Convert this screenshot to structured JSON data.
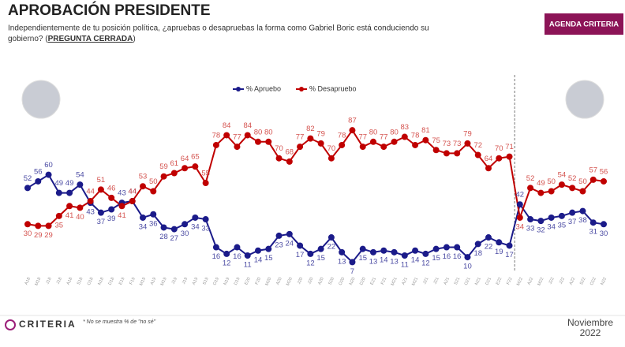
{
  "header": {
    "title": "APROBACIÓN PRESIDENTE",
    "subtitle": [
      "Independientemente de tu posición política, ¿apruebas o desapruebas la forma como Gabriel Boric está conduciendo su",
      "gobierno? ("
    ],
    "subtitle_tag": "PREGUNTA CERRADA",
    "subtitle_end": ")",
    "brand": "AGENDA CRITERIA"
  },
  "chart_data": {
    "type": "line",
    "categories": [
      "A18",
      "M18",
      "J18",
      "J18",
      "A18",
      "S18",
      "O18",
      "N18",
      "D18",
      "E19",
      "F19",
      "M19",
      "A19",
      "M19",
      "J19",
      "J19",
      "A19",
      "S19",
      "O19",
      "N19",
      "D19",
      "E20",
      "F20",
      "M20",
      "A20",
      "M20",
      "J20",
      "J20",
      "A20",
      "S20",
      "O20",
      "N20",
      "D20",
      "E21",
      "F21",
      "M21",
      "A21",
      "M21",
      "J21",
      "J21",
      "A21",
      "S21",
      "O21",
      "N21",
      "D21",
      "E22",
      "F22",
      "M22",
      "A22",
      "M22",
      "J22",
      "J22",
      "A22",
      "S22",
      "O22",
      "N22"
    ],
    "ylim": [
      0,
      100
    ],
    "series": [
      {
        "name": "% Apruebo",
        "color": "#1b1b8a",
        "label_color": "#4b4ba3",
        "values": [
          52,
          56,
          60,
          49,
          49,
          54,
          43,
          37,
          39,
          43,
          44,
          34,
          36,
          28,
          27,
          30,
          34,
          33,
          16,
          12,
          16,
          11,
          14,
          15,
          23,
          24,
          17,
          12,
          15,
          22,
          13,
          7,
          15,
          13,
          14,
          13,
          11,
          14,
          12,
          15,
          16,
          16,
          10,
          18,
          22,
          19,
          17,
          42,
          33,
          32,
          34,
          35,
          37,
          38,
          31,
          30
        ]
      },
      {
        "name": "% Desapruebo",
        "color": "#c00000",
        "label_color": "#d4534f",
        "values": [
          30,
          29,
          29,
          35,
          41,
          40,
          44,
          51,
          46,
          41,
          44,
          53,
          50,
          59,
          61,
          64,
          65,
          55,
          78,
          84,
          77,
          84,
          80,
          80,
          70,
          68,
          77,
          82,
          79,
          70,
          78,
          87,
          77,
          80,
          77,
          80,
          83,
          78,
          81,
          75,
          73,
          73,
          79,
          72,
          64,
          70,
          71,
          34,
          52,
          49,
          50,
          54,
          52,
          50,
          57,
          56
        ]
      }
    ]
  },
  "footer": {
    "logo": "CRITERIA",
    "note": "* No se muestra % de \"no sé\"",
    "date": [
      "Noviembre",
      "2022"
    ]
  }
}
